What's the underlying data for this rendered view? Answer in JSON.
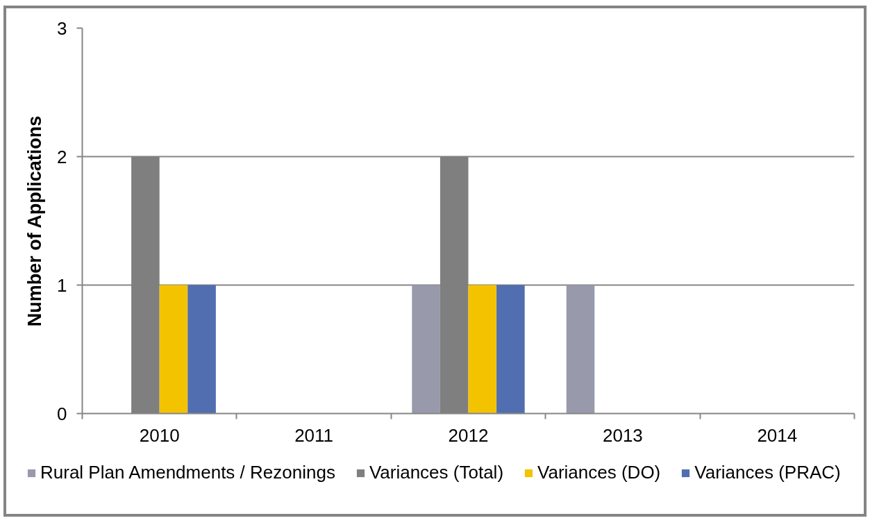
{
  "chart_data": {
    "type": "bar",
    "ylabel": "Number of Applications",
    "categories": [
      "2010",
      "2011",
      "2012",
      "2013",
      "2014"
    ],
    "series": [
      {
        "name": "Rural Plan Amendments / Rezonings",
        "color": "#989aab",
        "values": [
          0,
          0,
          1,
          1,
          0
        ]
      },
      {
        "name": "Variances (Total)",
        "color": "#7f7f7f",
        "values": [
          2,
          0,
          2,
          0,
          0
        ]
      },
      {
        "name": "Variances (DO)",
        "color": "#f3c300",
        "values": [
          1,
          0,
          1,
          0,
          0
        ]
      },
      {
        "name": "Variances (PRAC)",
        "color": "#516eb0",
        "values": [
          1,
          0,
          1,
          0,
          0
        ]
      }
    ],
    "ylim": [
      0,
      3
    ],
    "yticks": [
      0,
      1,
      2,
      3
    ],
    "grid": "y",
    "legend": "bottom"
  }
}
